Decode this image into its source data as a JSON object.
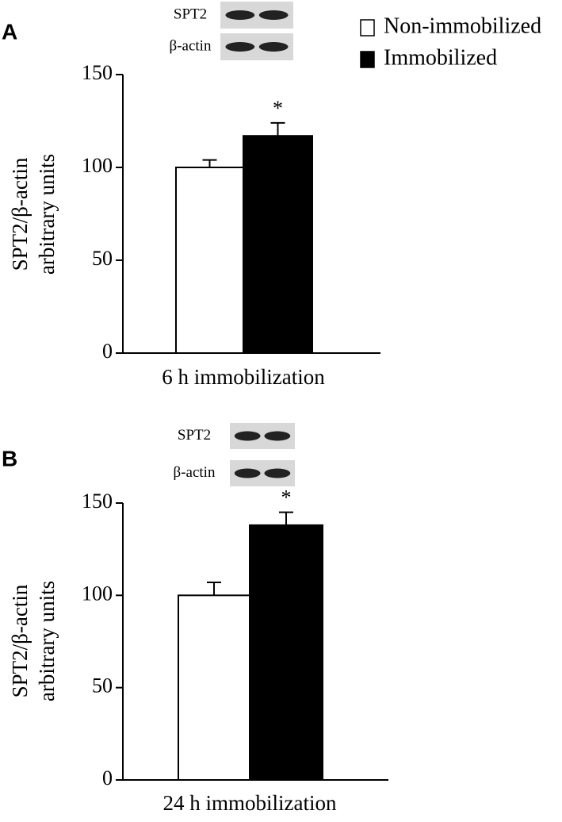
{
  "chart_data": [
    {
      "type": "bar",
      "panel": "A",
      "blot_labels": [
        "SPT2",
        "β-actin"
      ],
      "ylabel": [
        "SPT2/β-actin",
        "arbitrary units"
      ],
      "xlabel": "6 h immobilization",
      "ylim": [
        0,
        150
      ],
      "yticks": [
        0,
        50,
        100,
        150
      ],
      "series": [
        {
          "name": "Non-immobilized",
          "color": "#ffffff",
          "values": [
            100
          ],
          "errors": [
            4
          ]
        },
        {
          "name": "Immobilized",
          "color": "#000000",
          "values": [
            117
          ],
          "errors": [
            7
          ],
          "annotation": "*"
        }
      ]
    },
    {
      "type": "bar",
      "panel": "B",
      "blot_labels": [
        "SPT2",
        "β-actin"
      ],
      "ylabel": [
        "SPT2/β-actin",
        "arbitrary units"
      ],
      "xlabel": "24 h immobilization",
      "ylim": [
        0,
        150
      ],
      "yticks": [
        0,
        50,
        100,
        150
      ],
      "series": [
        {
          "color": "#ffffff",
          "values": [
            100
          ],
          "errors": [
            7
          ]
        },
        {
          "color": "#000000",
          "values": [
            138
          ],
          "errors": [
            7
          ],
          "annotation": "*"
        }
      ]
    }
  ]
}
